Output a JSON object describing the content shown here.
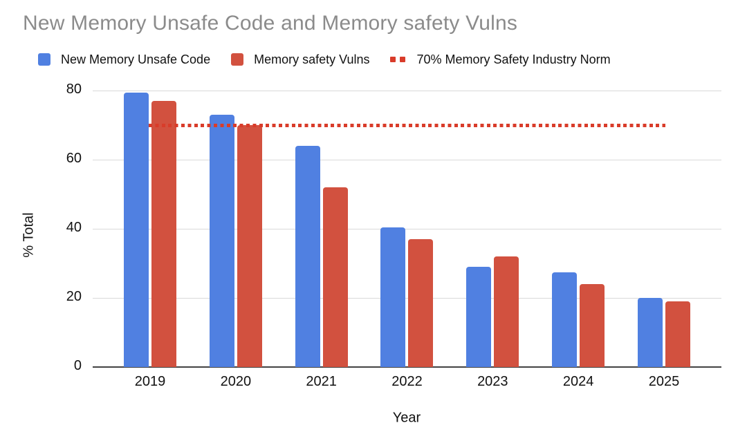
{
  "title": "New Memory Unsafe Code and Memory safety Vulns",
  "legend": {
    "items": [
      {
        "label": "New Memory Unsafe Code",
        "icon": "square-swatch",
        "color": "#5080E1"
      },
      {
        "label": "Memory safety Vulns",
        "icon": "square-swatch",
        "color": "#D2513F"
      },
      {
        "label": "70% Memory Safety Industry Norm",
        "icon": "dotted-line-swatch",
        "color": "#D93C2A"
      }
    ]
  },
  "chart_data": {
    "type": "bar",
    "title": "New Memory Unsafe Code and Memory safety Vulns",
    "categories": [
      "2019",
      "2020",
      "2021",
      "2022",
      "2023",
      "2024",
      "2025"
    ],
    "series": [
      {
        "name": "New Memory Unsafe Code",
        "color": "#5080E1",
        "values": [
          79.5,
          73,
          64,
          40.5,
          29,
          27.5,
          20
        ]
      },
      {
        "name": "Memory safety Vulns",
        "color": "#D2513F",
        "values": [
          77,
          70,
          52,
          37,
          32,
          24,
          19
        ]
      }
    ],
    "reference_line": {
      "label": "70% Memory Safety Industry Norm",
      "value": 70,
      "style": "dotted",
      "color": "#D93C2A"
    },
    "xlabel": "Year",
    "ylabel": "% Total",
    "ylim": [
      0,
      80
    ],
    "yticks": [
      0,
      20,
      40,
      60,
      80
    ],
    "grid": true,
    "legend_position": "top"
  }
}
